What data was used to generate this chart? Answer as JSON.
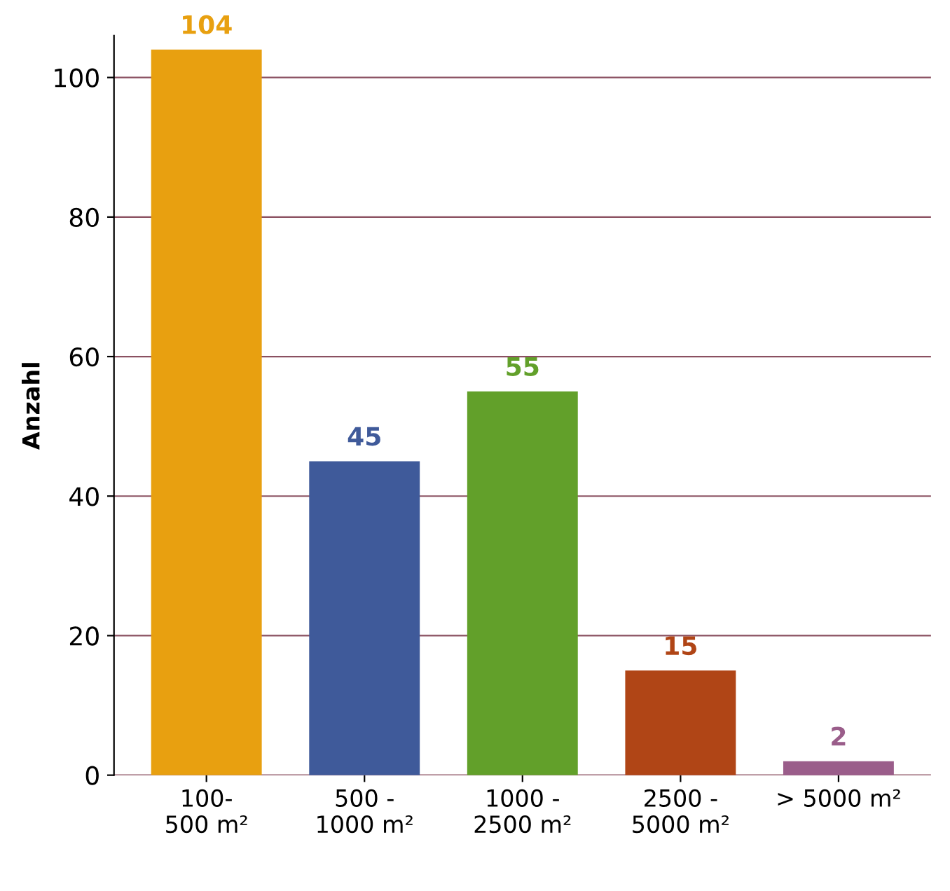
{
  "chart_data": {
    "type": "bar",
    "ylabel": "Anzahl",
    "categories": [
      "100-\n500 m²",
      "500 -\n1000 m²",
      "1000 -\n2500 m²",
      "2500 -\n5000 m²",
      "> 5000 m²"
    ],
    "values": [
      104,
      45,
      55,
      15,
      2
    ],
    "colors": [
      "#e8a010",
      "#3f5a9a",
      "#62a02a",
      "#b04516",
      "#9a5d8a"
    ],
    "ylim": [
      0,
      106
    ],
    "yticks": [
      0,
      20,
      40,
      60,
      80,
      100
    ],
    "grid": "y",
    "data_labels": true
  }
}
